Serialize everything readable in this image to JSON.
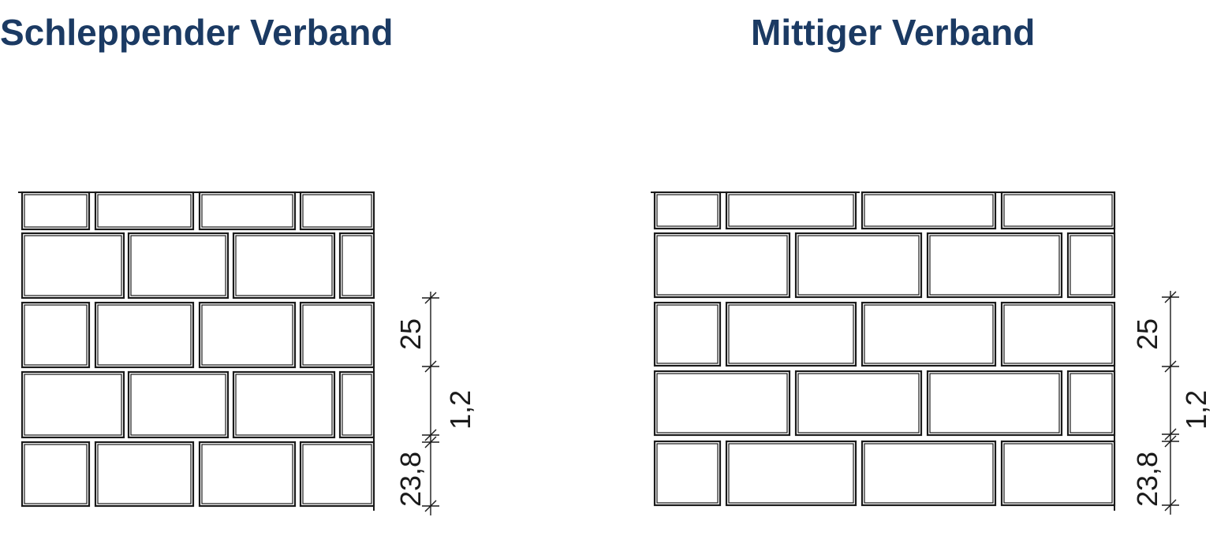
{
  "colors": {
    "title": "#1b3a63",
    "lines": "#1a1a1a",
    "background": "#ffffff"
  },
  "panels": [
    {
      "title": "Schleppender Verband",
      "dimensions": {
        "brick_height": "25",
        "joint": "1,2",
        "first_course": "23,8"
      }
    },
    {
      "title": "Mittiger Verband",
      "dimensions": {
        "brick_height": "25",
        "joint": "1,2",
        "first_course": "23,8"
      }
    }
  ]
}
